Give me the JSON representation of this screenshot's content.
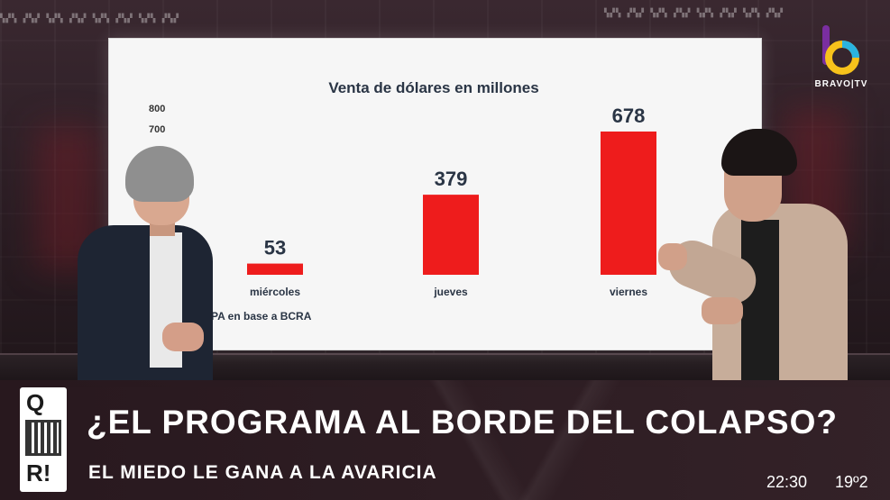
{
  "screen": {
    "chart_data": {
      "type": "bar",
      "title": "Venta de dólares en millones",
      "categories": [
        "miércoles",
        "jueves",
        "viernes"
      ],
      "values": [
        53,
        379,
        678
      ],
      "y_tick_labels": [
        "800",
        "700"
      ],
      "ylim": [
        0,
        800
      ],
      "source": "PA en base a BCRA",
      "bar_color": "#ee1c1c",
      "grid": false
    }
  },
  "channel": {
    "logo_text": "BRAVO|TV",
    "logo_colors": [
      "#f7c21b",
      "#2ab4e0",
      "#7a2ea0"
    ]
  },
  "lower_third": {
    "show_mark_top": "Q",
    "show_mark_bottom": "R!",
    "headline": "¿EL PROGRAMA AL BORDE DEL COLAPSO?",
    "subheadline": "EL MIEDO LE GANA A LA AVARICIA",
    "time": "22:30",
    "temperature": "19º2"
  }
}
